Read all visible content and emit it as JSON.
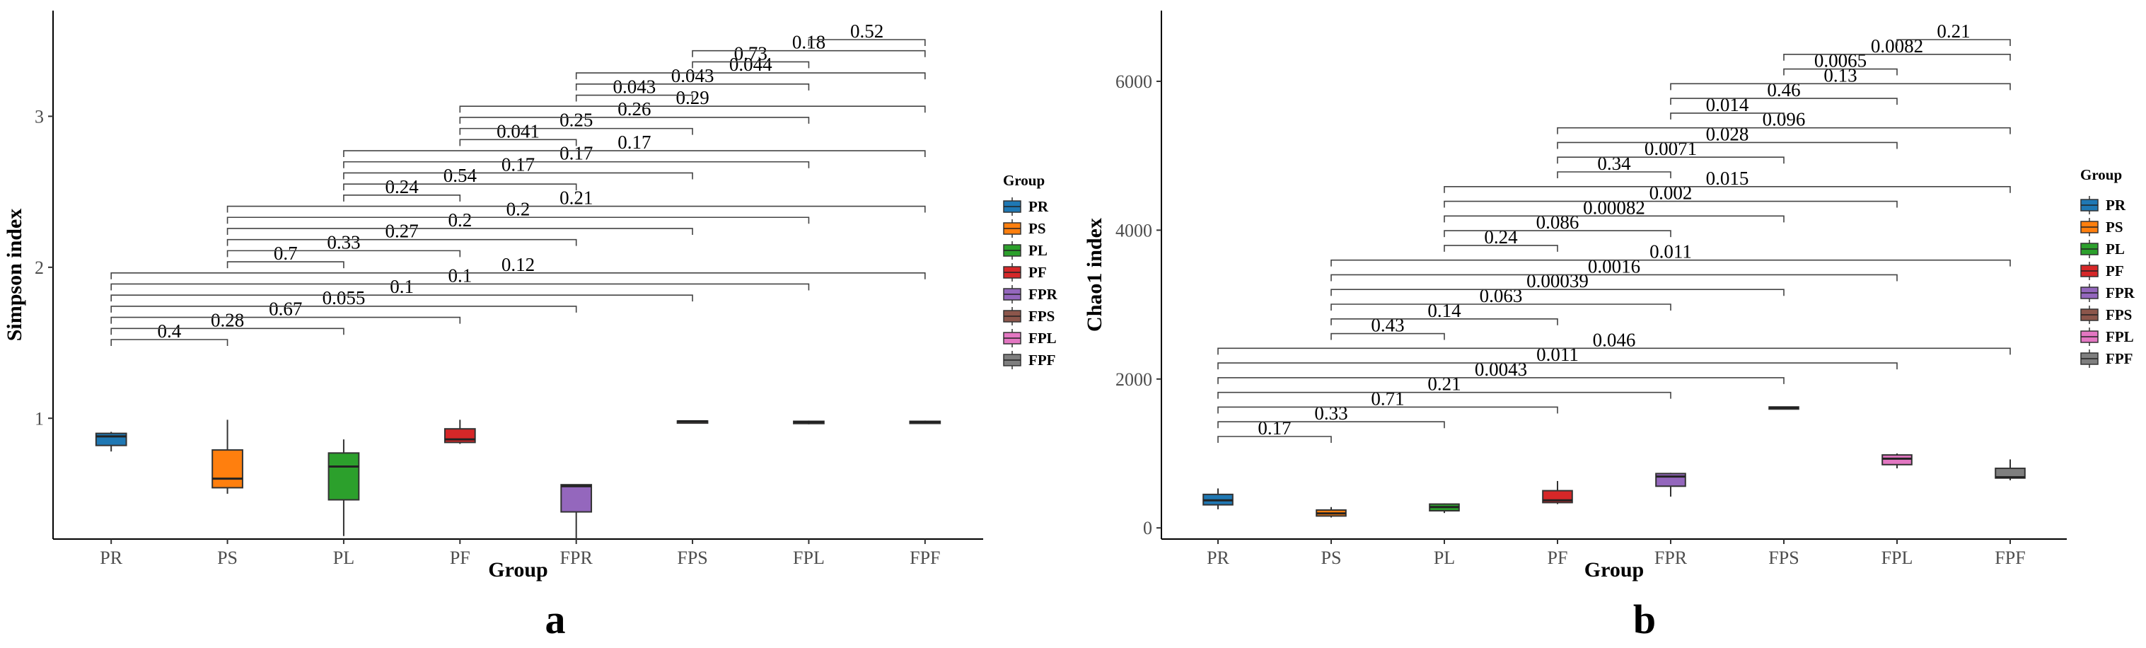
{
  "chart_data": [
    {
      "type": "boxplot",
      "panel_label": "a",
      "xlabel": "Group",
      "ylabel": "Simpson index",
      "ylim": [
        0.2,
        3.7
      ],
      "yticks": [
        1,
        2,
        3
      ],
      "legend_title": "Group",
      "legend_position": "right",
      "grid": false,
      "categories": [
        "PR",
        "PS",
        "PL",
        "PF",
        "FPR",
        "FPS",
        "FPL",
        "FPF"
      ],
      "colors": [
        "#1F78B4",
        "#FF7F0E",
        "#2CA02C",
        "#D62728",
        "#9467BD",
        "#8C564B",
        "#E377C2",
        "#7F7F7F"
      ],
      "boxes": [
        {
          "group": "PR",
          "min": 0.78,
          "q1": 0.82,
          "median": 0.88,
          "q3": 0.9,
          "max": 0.91
        },
        {
          "group": "PS",
          "min": 0.5,
          "q1": 0.54,
          "median": 0.6,
          "q3": 0.79,
          "max": 0.99
        },
        {
          "group": "PL",
          "min": 0.22,
          "q1": 0.46,
          "median": 0.68,
          "q3": 0.77,
          "max": 0.86
        },
        {
          "group": "PF",
          "min": 0.83,
          "q1": 0.84,
          "median": 0.86,
          "q3": 0.93,
          "max": 0.99
        },
        {
          "group": "FPR",
          "min": 0.2,
          "q1": 0.38,
          "median": 0.55,
          "q3": 0.56,
          "max": 0.56
        },
        {
          "group": "FPS",
          "min": 0.975,
          "q1": 0.978,
          "median": 0.98,
          "q3": 0.982,
          "max": 0.985
        },
        {
          "group": "FPL",
          "min": 0.96,
          "q1": 0.965,
          "median": 0.975,
          "q3": 0.98,
          "max": 0.985
        },
        {
          "group": "FPF",
          "min": 0.965,
          "q1": 0.968,
          "median": 0.975,
          "q3": 0.98,
          "max": 0.985
        }
      ],
      "comparisons": [
        {
          "from": "PR",
          "to": "PS",
          "p": "0.4"
        },
        {
          "from": "PR",
          "to": "PL",
          "p": "0.28"
        },
        {
          "from": "PR",
          "to": "PF",
          "p": "0.67"
        },
        {
          "from": "PR",
          "to": "FPR",
          "p": "0.055"
        },
        {
          "from": "PR",
          "to": "FPS",
          "p": "0.1"
        },
        {
          "from": "PR",
          "to": "FPL",
          "p": "0.1"
        },
        {
          "from": "PR",
          "to": "FPF",
          "p": "0.12"
        },
        {
          "from": "PS",
          "to": "PL",
          "p": "0.7"
        },
        {
          "from": "PS",
          "to": "PF",
          "p": "0.33"
        },
        {
          "from": "PS",
          "to": "FPR",
          "p": "0.27"
        },
        {
          "from": "PS",
          "to": "FPS",
          "p": "0.2"
        },
        {
          "from": "PS",
          "to": "FPL",
          "p": "0.2"
        },
        {
          "from": "PS",
          "to": "FPF",
          "p": "0.21"
        },
        {
          "from": "PL",
          "to": "PF",
          "p": "0.24"
        },
        {
          "from": "PL",
          "to": "FPR",
          "p": "0.54"
        },
        {
          "from": "PL",
          "to": "FPS",
          "p": "0.17"
        },
        {
          "from": "PL",
          "to": "FPL",
          "p": "0.17"
        },
        {
          "from": "PL",
          "to": "FPF",
          "p": "0.17"
        },
        {
          "from": "PF",
          "to": "FPR",
          "p": "0.041"
        },
        {
          "from": "PF",
          "to": "FPS",
          "p": "0.25"
        },
        {
          "from": "PF",
          "to": "FPL",
          "p": "0.26"
        },
        {
          "from": "PF",
          "to": "FPF",
          "p": "0.29"
        },
        {
          "from": "FPR",
          "to": "FPS",
          "p": "0.043"
        },
        {
          "from": "FPR",
          "to": "FPL",
          "p": "0.043"
        },
        {
          "from": "FPR",
          "to": "FPF",
          "p": "0.044"
        },
        {
          "from": "FPS",
          "to": "FPL",
          "p": "0.73"
        },
        {
          "from": "FPS",
          "to": "FPF",
          "p": "0.18"
        },
        {
          "from": "FPL",
          "to": "FPF",
          "p": "0.52"
        }
      ]
    },
    {
      "type": "boxplot",
      "panel_label": "b",
      "xlabel": "Group",
      "ylabel": "Chao1 index",
      "ylim": [
        -150,
        6950
      ],
      "yticks": [
        0,
        2000,
        4000,
        6000
      ],
      "legend_title": "Group",
      "legend_position": "right",
      "grid": false,
      "categories": [
        "PR",
        "PS",
        "PL",
        "PF",
        "FPR",
        "FPS",
        "FPL",
        "FPF"
      ],
      "colors": [
        "#1F78B4",
        "#FF7F0E",
        "#2CA02C",
        "#D62728",
        "#9467BD",
        "#8C564B",
        "#E377C2",
        "#7F7F7F"
      ],
      "boxes": [
        {
          "group": "PR",
          "min": 250,
          "q1": 310,
          "median": 370,
          "q3": 450,
          "max": 530
        },
        {
          "group": "PS",
          "min": 140,
          "q1": 160,
          "median": 195,
          "q3": 240,
          "max": 280
        },
        {
          "group": "PL",
          "min": 200,
          "q1": 230,
          "median": 280,
          "q3": 320,
          "max": 330
        },
        {
          "group": "PF",
          "min": 320,
          "q1": 340,
          "median": 370,
          "q3": 500,
          "max": 630
        },
        {
          "group": "FPR",
          "min": 420,
          "q1": 560,
          "median": 690,
          "q3": 730,
          "max": 740
        },
        {
          "group": "FPS",
          "min": 1600,
          "q1": 1605,
          "median": 1615,
          "q3": 1625,
          "max": 1630
        },
        {
          "group": "FPL",
          "min": 800,
          "q1": 850,
          "median": 930,
          "q3": 980,
          "max": 1000
        },
        {
          "group": "FPF",
          "min": 640,
          "q1": 670,
          "median": 680,
          "q3": 800,
          "max": 920
        }
      ],
      "comparisons": [
        {
          "from": "PR",
          "to": "PS",
          "p": "0.17"
        },
        {
          "from": "PR",
          "to": "PL",
          "p": "0.33"
        },
        {
          "from": "PR",
          "to": "PF",
          "p": "0.71"
        },
        {
          "from": "PR",
          "to": "FPR",
          "p": "0.21"
        },
        {
          "from": "PR",
          "to": "FPS",
          "p": "0.0043"
        },
        {
          "from": "PR",
          "to": "FPL",
          "p": "0.011"
        },
        {
          "from": "PR",
          "to": "FPF",
          "p": "0.046"
        },
        {
          "from": "PS",
          "to": "PL",
          "p": "0.43"
        },
        {
          "from": "PS",
          "to": "PF",
          "p": "0.14"
        },
        {
          "from": "PS",
          "to": "FPR",
          "p": "0.063"
        },
        {
          "from": "PS",
          "to": "FPS",
          "p": "0.00039"
        },
        {
          "from": "PS",
          "to": "FPL",
          "p": "0.0016"
        },
        {
          "from": "PS",
          "to": "FPF",
          "p": "0.011"
        },
        {
          "from": "PL",
          "to": "PF",
          "p": "0.24"
        },
        {
          "from": "PL",
          "to": "FPR",
          "p": "0.086"
        },
        {
          "from": "PL",
          "to": "FPS",
          "p": "0.00082"
        },
        {
          "from": "PL",
          "to": "FPL",
          "p": "0.002"
        },
        {
          "from": "PL",
          "to": "FPF",
          "p": "0.015"
        },
        {
          "from": "PF",
          "to": "FPR",
          "p": "0.34"
        },
        {
          "from": "PF",
          "to": "FPS",
          "p": "0.0071"
        },
        {
          "from": "PF",
          "to": "FPL",
          "p": "0.028"
        },
        {
          "from": "PF",
          "to": "FPF",
          "p": "0.096"
        },
        {
          "from": "FPR",
          "to": "FPS",
          "p": "0.014"
        },
        {
          "from": "FPR",
          "to": "FPL",
          "p": "0.46"
        },
        {
          "from": "FPR",
          "to": "FPF",
          "p": "0.13"
        },
        {
          "from": "FPS",
          "to": "FPL",
          "p": "0.0065"
        },
        {
          "from": "FPS",
          "to": "FPF",
          "p": "0.0082"
        },
        {
          "from": "FPL",
          "to": "FPF",
          "p": "0.21"
        }
      ]
    }
  ]
}
